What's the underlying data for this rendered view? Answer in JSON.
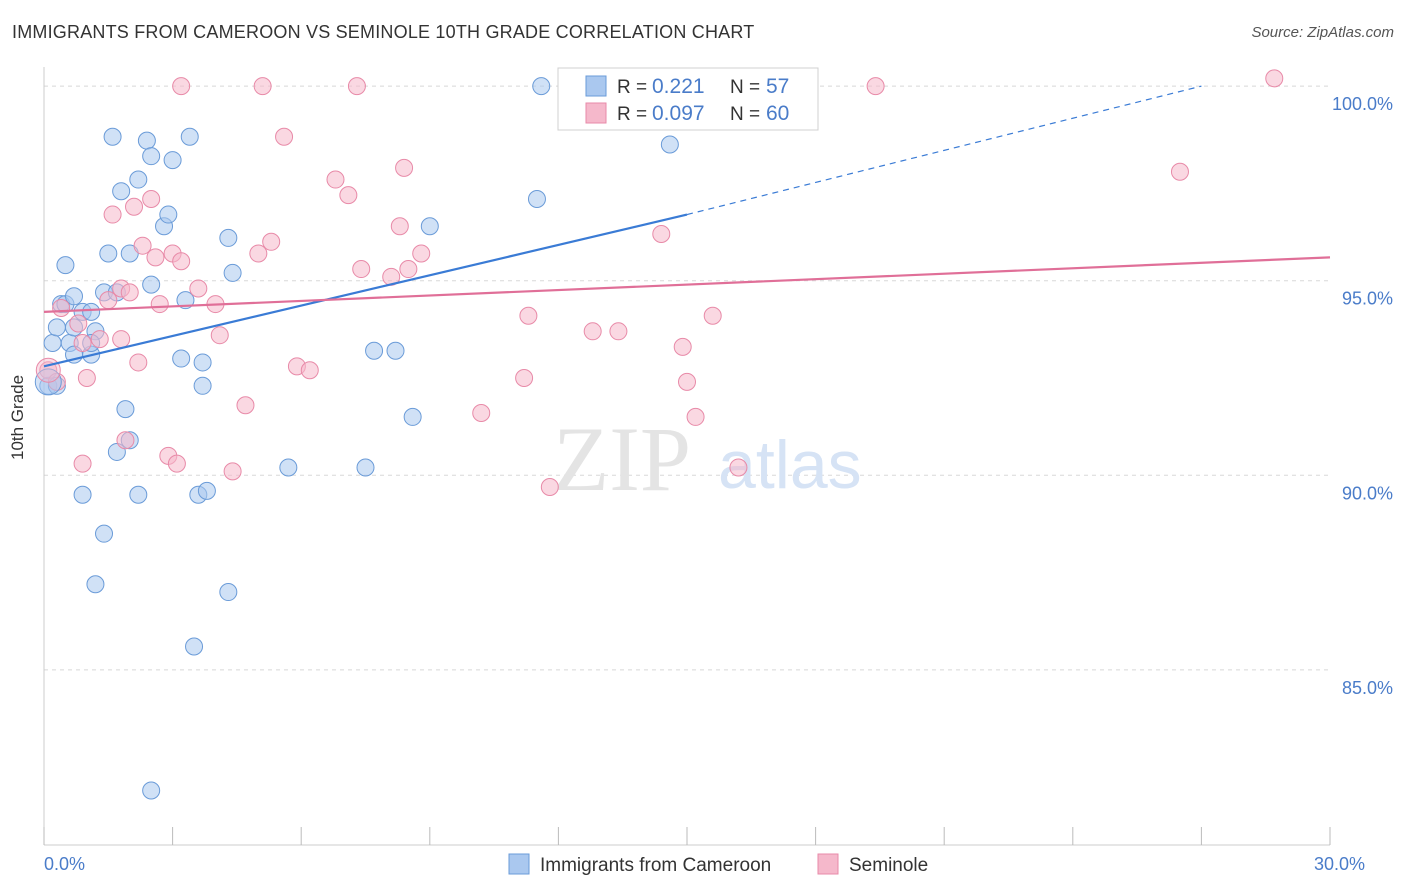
{
  "title": "IMMIGRANTS FROM CAMEROON VS SEMINOLE 10TH GRADE CORRELATION CHART",
  "source": "Source: ZipAtlas.com",
  "watermark": {
    "zip": "ZIP",
    "atlas": "atlas"
  },
  "colors": {
    "blue_fill": "#aac8ef",
    "blue_stroke": "#6a9bd8",
    "blue_line": "#3a7bd5",
    "pink_fill": "#f5b8cb",
    "pink_stroke": "#e88aa8",
    "pink_line": "#e06f98",
    "axis_text": "#4a7cc9",
    "grid": "#d8d8d8"
  },
  "chart_data": {
    "type": "scatter",
    "title": "IMMIGRANTS FROM CAMEROON VS SEMINOLE 10TH GRADE CORRELATION CHART",
    "xlabel": "",
    "ylabel": "10th Grade",
    "xlim": [
      0,
      30
    ],
    "ylim": [
      80.5,
      100.8
    ],
    "x_tick_labels": [
      {
        "value": 0,
        "label": "0.0%"
      },
      {
        "value": 30,
        "label": "30.0%"
      }
    ],
    "y_tick_labels": [
      {
        "value": 100,
        "label": "100.0%"
      },
      {
        "value": 95,
        "label": "95.0%"
      },
      {
        "value": 90,
        "label": "90.0%"
      },
      {
        "value": 85,
        "label": "85.0%"
      }
    ],
    "grid": "horizontal dashed",
    "legend_position": "bottom-center",
    "stats_box": [
      {
        "r_label": "R = ",
        "r_value": "0.221",
        "n_label": "N = ",
        "n_value": "57"
      },
      {
        "r_label": "R = ",
        "r_value": "0.097",
        "n_label": "N = ",
        "n_value": "60"
      }
    ],
    "series": [
      {
        "name": "Immigrants from Cameroon",
        "color": "blue",
        "trend": {
          "x": [
            0,
            15
          ],
          "y": [
            92.8,
            96.7
          ],
          "dashed_extension_to": [
            27,
            100
          ]
        },
        "points": [
          [
            0.1,
            92.3
          ],
          [
            0.3,
            92.3
          ],
          [
            0.2,
            93.4
          ],
          [
            0.3,
            93.8
          ],
          [
            0.4,
            94.4
          ],
          [
            0.5,
            95.4
          ],
          [
            0.5,
            94.4
          ],
          [
            0.6,
            93.4
          ],
          [
            0.7,
            93.1
          ],
          [
            0.7,
            93.8
          ],
          [
            0.7,
            94.6
          ],
          [
            0.9,
            94.2
          ],
          [
            1.1,
            94.2
          ],
          [
            1.1,
            93.1
          ],
          [
            1.2,
            93.7
          ],
          [
            1.1,
            93.4
          ],
          [
            1.4,
            94.7
          ],
          [
            1.5,
            95.7
          ],
          [
            1.6,
            98.7
          ],
          [
            1.7,
            94.7
          ],
          [
            1.8,
            97.3
          ],
          [
            2.0,
            95.7
          ],
          [
            2.2,
            97.6
          ],
          [
            2.4,
            98.6
          ],
          [
            2.5,
            98.2
          ],
          [
            2.5,
            94.9
          ],
          [
            2.8,
            96.4
          ],
          [
            2.9,
            96.7
          ],
          [
            3.0,
            98.1
          ],
          [
            3.3,
            94.5
          ],
          [
            3.2,
            93.0
          ],
          [
            3.4,
            98.7
          ],
          [
            3.7,
            92.3
          ],
          [
            3.7,
            92.9
          ],
          [
            4.3,
            96.1
          ],
          [
            4.4,
            95.2
          ],
          [
            1.9,
            91.7
          ],
          [
            2.0,
            90.9
          ],
          [
            1.7,
            90.6
          ],
          [
            2.2,
            89.5
          ],
          [
            0.9,
            89.5
          ],
          [
            1.4,
            88.5
          ],
          [
            1.2,
            87.2
          ],
          [
            3.6,
            89.5
          ],
          [
            3.8,
            89.6
          ],
          [
            4.3,
            87.0
          ],
          [
            3.5,
            85.6
          ],
          [
            2.5,
            81.9
          ],
          [
            5.7,
            90.2
          ],
          [
            7.7,
            93.2
          ],
          [
            7.5,
            90.2
          ],
          [
            8.2,
            93.2
          ],
          [
            8.6,
            91.5
          ],
          [
            9.0,
            96.4
          ],
          [
            11.6,
            100.0
          ],
          [
            11.5,
            97.1
          ],
          [
            14.6,
            98.5
          ]
        ]
      },
      {
        "name": "Seminole",
        "color": "pink",
        "trend": {
          "x": [
            0,
            30
          ],
          "y": [
            94.2,
            95.6
          ]
        },
        "points": [
          [
            0.1,
            92.7
          ],
          [
            0.3,
            92.4
          ],
          [
            0.4,
            94.3
          ],
          [
            0.8,
            93.9
          ],
          [
            0.9,
            93.4
          ],
          [
            1.0,
            92.5
          ],
          [
            0.9,
            90.3
          ],
          [
            1.5,
            94.5
          ],
          [
            1.6,
            96.7
          ],
          [
            1.8,
            94.8
          ],
          [
            1.8,
            93.5
          ],
          [
            1.9,
            90.9
          ],
          [
            2.0,
            94.7
          ],
          [
            2.1,
            96.9
          ],
          [
            2.2,
            92.9
          ],
          [
            2.3,
            95.9
          ],
          [
            2.5,
            97.1
          ],
          [
            2.6,
            95.6
          ],
          [
            2.7,
            94.4
          ],
          [
            2.9,
            90.5
          ],
          [
            3.0,
            95.7
          ],
          [
            3.1,
            90.3
          ],
          [
            3.2,
            95.5
          ],
          [
            3.2,
            100.0
          ],
          [
            3.6,
            94.8
          ],
          [
            4.0,
            94.4
          ],
          [
            4.1,
            93.6
          ],
          [
            4.4,
            90.1
          ],
          [
            4.7,
            91.8
          ],
          [
            5.0,
            95.7
          ],
          [
            5.3,
            96.0
          ],
          [
            5.6,
            98.7
          ],
          [
            5.9,
            92.8
          ],
          [
            6.2,
            92.7
          ],
          [
            5.1,
            100.0
          ],
          [
            6.8,
            97.6
          ],
          [
            7.1,
            97.2
          ],
          [
            7.3,
            100.0
          ],
          [
            7.4,
            95.3
          ],
          [
            8.1,
            95.1
          ],
          [
            8.3,
            96.4
          ],
          [
            8.4,
            97.9
          ],
          [
            8.5,
            95.3
          ],
          [
            8.8,
            95.7
          ],
          [
            10.2,
            91.6
          ],
          [
            11.2,
            92.5
          ],
          [
            11.3,
            94.1
          ],
          [
            11.8,
            89.7
          ],
          [
            12.8,
            93.7
          ],
          [
            13.4,
            93.7
          ],
          [
            14.4,
            96.2
          ],
          [
            14.9,
            93.3
          ],
          [
            15.0,
            92.4
          ],
          [
            15.2,
            91.5
          ],
          [
            15.6,
            94.1
          ],
          [
            16.2,
            90.2
          ],
          [
            19.4,
            100.0
          ],
          [
            26.5,
            97.8
          ],
          [
            28.7,
            100.2
          ],
          [
            1.3,
            93.5
          ]
        ]
      }
    ]
  },
  "legend": [
    {
      "label": "Immigrants from Cameroon",
      "color": "blue"
    },
    {
      "label": "Seminole",
      "color": "pink"
    }
  ]
}
